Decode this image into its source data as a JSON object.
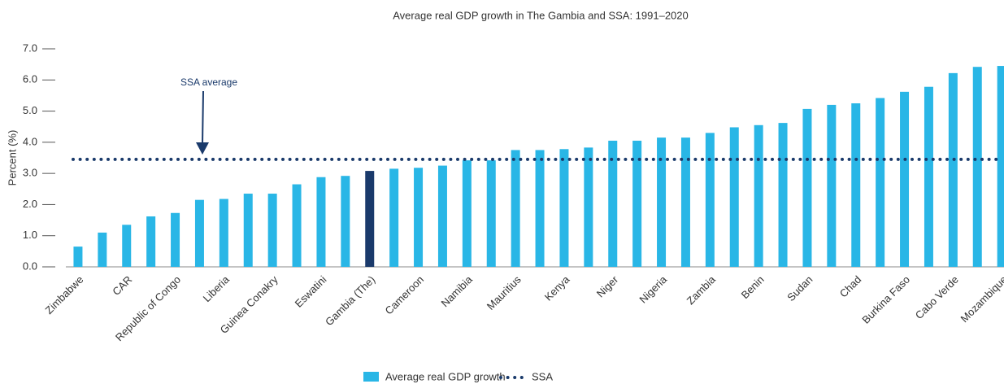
{
  "chart_data": {
    "type": "bar",
    "title": "Average real GDP growth in The Gambia and SSA: 1991–2020",
    "y_label": "Percent (%)",
    "annotation": "SSA average",
    "categories": [
      "Zimbabwe",
      null,
      "CAR",
      null,
      "Republic of Congo",
      null,
      "Liberia",
      null,
      "Guinea Conakry",
      null,
      "Eswatini",
      null,
      "Gambia (The)",
      null,
      "Cameroon",
      null,
      "Namibia",
      null,
      "Mauritius",
      null,
      "Kenya",
      null,
      "Niger",
      null,
      "Nigeria",
      null,
      "Zambia",
      null,
      "Benin",
      null,
      "Sudan",
      null,
      "Chad",
      null,
      "Burkina Faso",
      null,
      "Cabo Verde",
      null,
      "Mozambique"
    ],
    "series": [
      {
        "name": "Average real GDP growth",
        "color": "#29b6e6",
        "values": [
          0.65,
          1.1,
          1.35,
          1.62,
          1.73,
          2.15,
          2.18,
          2.35,
          2.35,
          2.65,
          2.88,
          2.92,
          3.08,
          3.15,
          3.18,
          3.25,
          3.42,
          3.42,
          3.75,
          3.75,
          3.78,
          3.83,
          4.05,
          4.05,
          4.15,
          4.15,
          4.3,
          4.48,
          4.55,
          4.62,
          5.07,
          5.2,
          5.25,
          5.42,
          5.62,
          5.78,
          6.22,
          6.42,
          6.45
        ],
        "highlight": {
          "index": 12,
          "color": "#1a3a6b"
        }
      }
    ],
    "reference_lines": [
      {
        "name": "SSA",
        "value": 3.45,
        "color": "#1a3a6b"
      }
    ],
    "ylim": [
      0,
      7
    ],
    "yticks": [
      {
        "value": 0,
        "label": "0.0"
      },
      {
        "value": 1,
        "label": "1.0"
      },
      {
        "value": 2,
        "label": "2.0"
      },
      {
        "value": 3,
        "label": "3.0"
      },
      {
        "value": 4,
        "label": "4.0"
      },
      {
        "value": 5,
        "label": "5.0"
      },
      {
        "value": 6,
        "label": "6.0"
      },
      {
        "value": 7,
        "label": "7.0"
      }
    ],
    "grid": false
  }
}
